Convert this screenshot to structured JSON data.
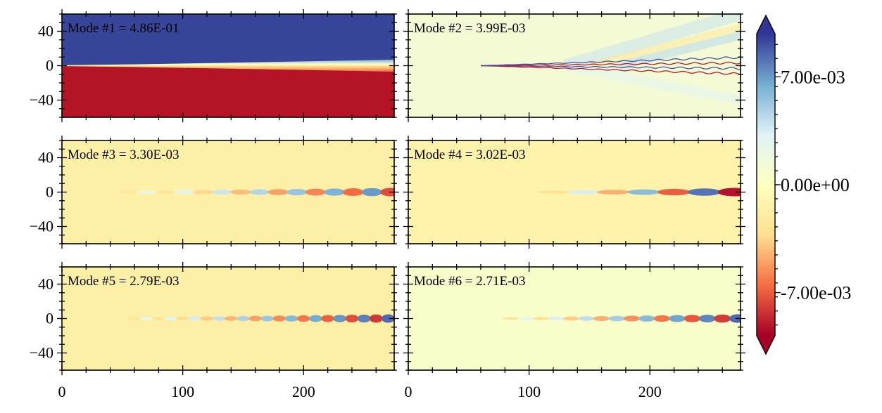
{
  "chart_data": {
    "type": "heatmap",
    "title": "",
    "layout": "3 rows x 2 columns, shared axes",
    "xlim": [
      0,
      275
    ],
    "ylim": [
      -60,
      60
    ],
    "x_ticks": [
      0,
      100,
      200
    ],
    "y_ticks": [
      40,
      0,
      -40
    ],
    "x_tick_labels": [
      "0",
      "100",
      "200"
    ],
    "y_tick_labels": [
      "40",
      "0",
      "−40"
    ],
    "color_scale": {
      "name": "RdYlBu",
      "vmin": -0.0098,
      "vmax": 0.0098,
      "ticks": [
        0.007,
        0.0,
        -0.007
      ],
      "tick_labels": [
        "7.00e-03",
        "0.00e+00",
        "-7.00e-03"
      ],
      "extend": "both",
      "colors": {
        "neg_extreme": "#a50026",
        "neg_mid": "#f46d43",
        "neg_low": "#fee090",
        "zero": "#ffffbf",
        "pos_low": "#e0f3f8",
        "pos_mid": "#74add1",
        "pos_extreme": "#313695"
      }
    },
    "panels": [
      {
        "id": 1,
        "label": "Mode #1 = 4.86E-01",
        "eigenvalue": 0.486,
        "pattern": "split",
        "background": 0.0,
        "wave_start_x": 0,
        "wavelength": 0,
        "amplitude": 1.0
      },
      {
        "id": 2,
        "label": "Mode #2 = 3.99E-03",
        "eigenvalue": 0.00399,
        "pattern": "fine_wake",
        "background": 0.0012,
        "wave_start_x": 60,
        "wavelength": 14,
        "amplitude": 0.009
      },
      {
        "id": 3,
        "label": "Mode #3 = 3.30E-03",
        "eigenvalue": 0.0033,
        "pattern": "wave",
        "background": -0.0016,
        "wave_start_x": 55,
        "wavelength": 31,
        "amplitude": 0.0075
      },
      {
        "id": 4,
        "label": "Mode #4 = 3.02E-03",
        "eigenvalue": 0.00302,
        "pattern": "wave",
        "background": -0.0014,
        "wave_start_x": 120,
        "wavelength": 50,
        "amplitude": 0.0095
      },
      {
        "id": 5,
        "label": "Mode #5 = 2.79E-03",
        "eigenvalue": 0.00279,
        "pattern": "wave",
        "background": -0.0017,
        "wave_start_x": 60,
        "wavelength": 20,
        "amplitude": 0.0085
      },
      {
        "id": 6,
        "label": "Mode #6 = 2.71E-03",
        "eigenvalue": 0.00271,
        "pattern": "wave",
        "background": 0.0006,
        "wave_start_x": 85,
        "wavelength": 25,
        "amplitude": 0.0085
      }
    ]
  }
}
